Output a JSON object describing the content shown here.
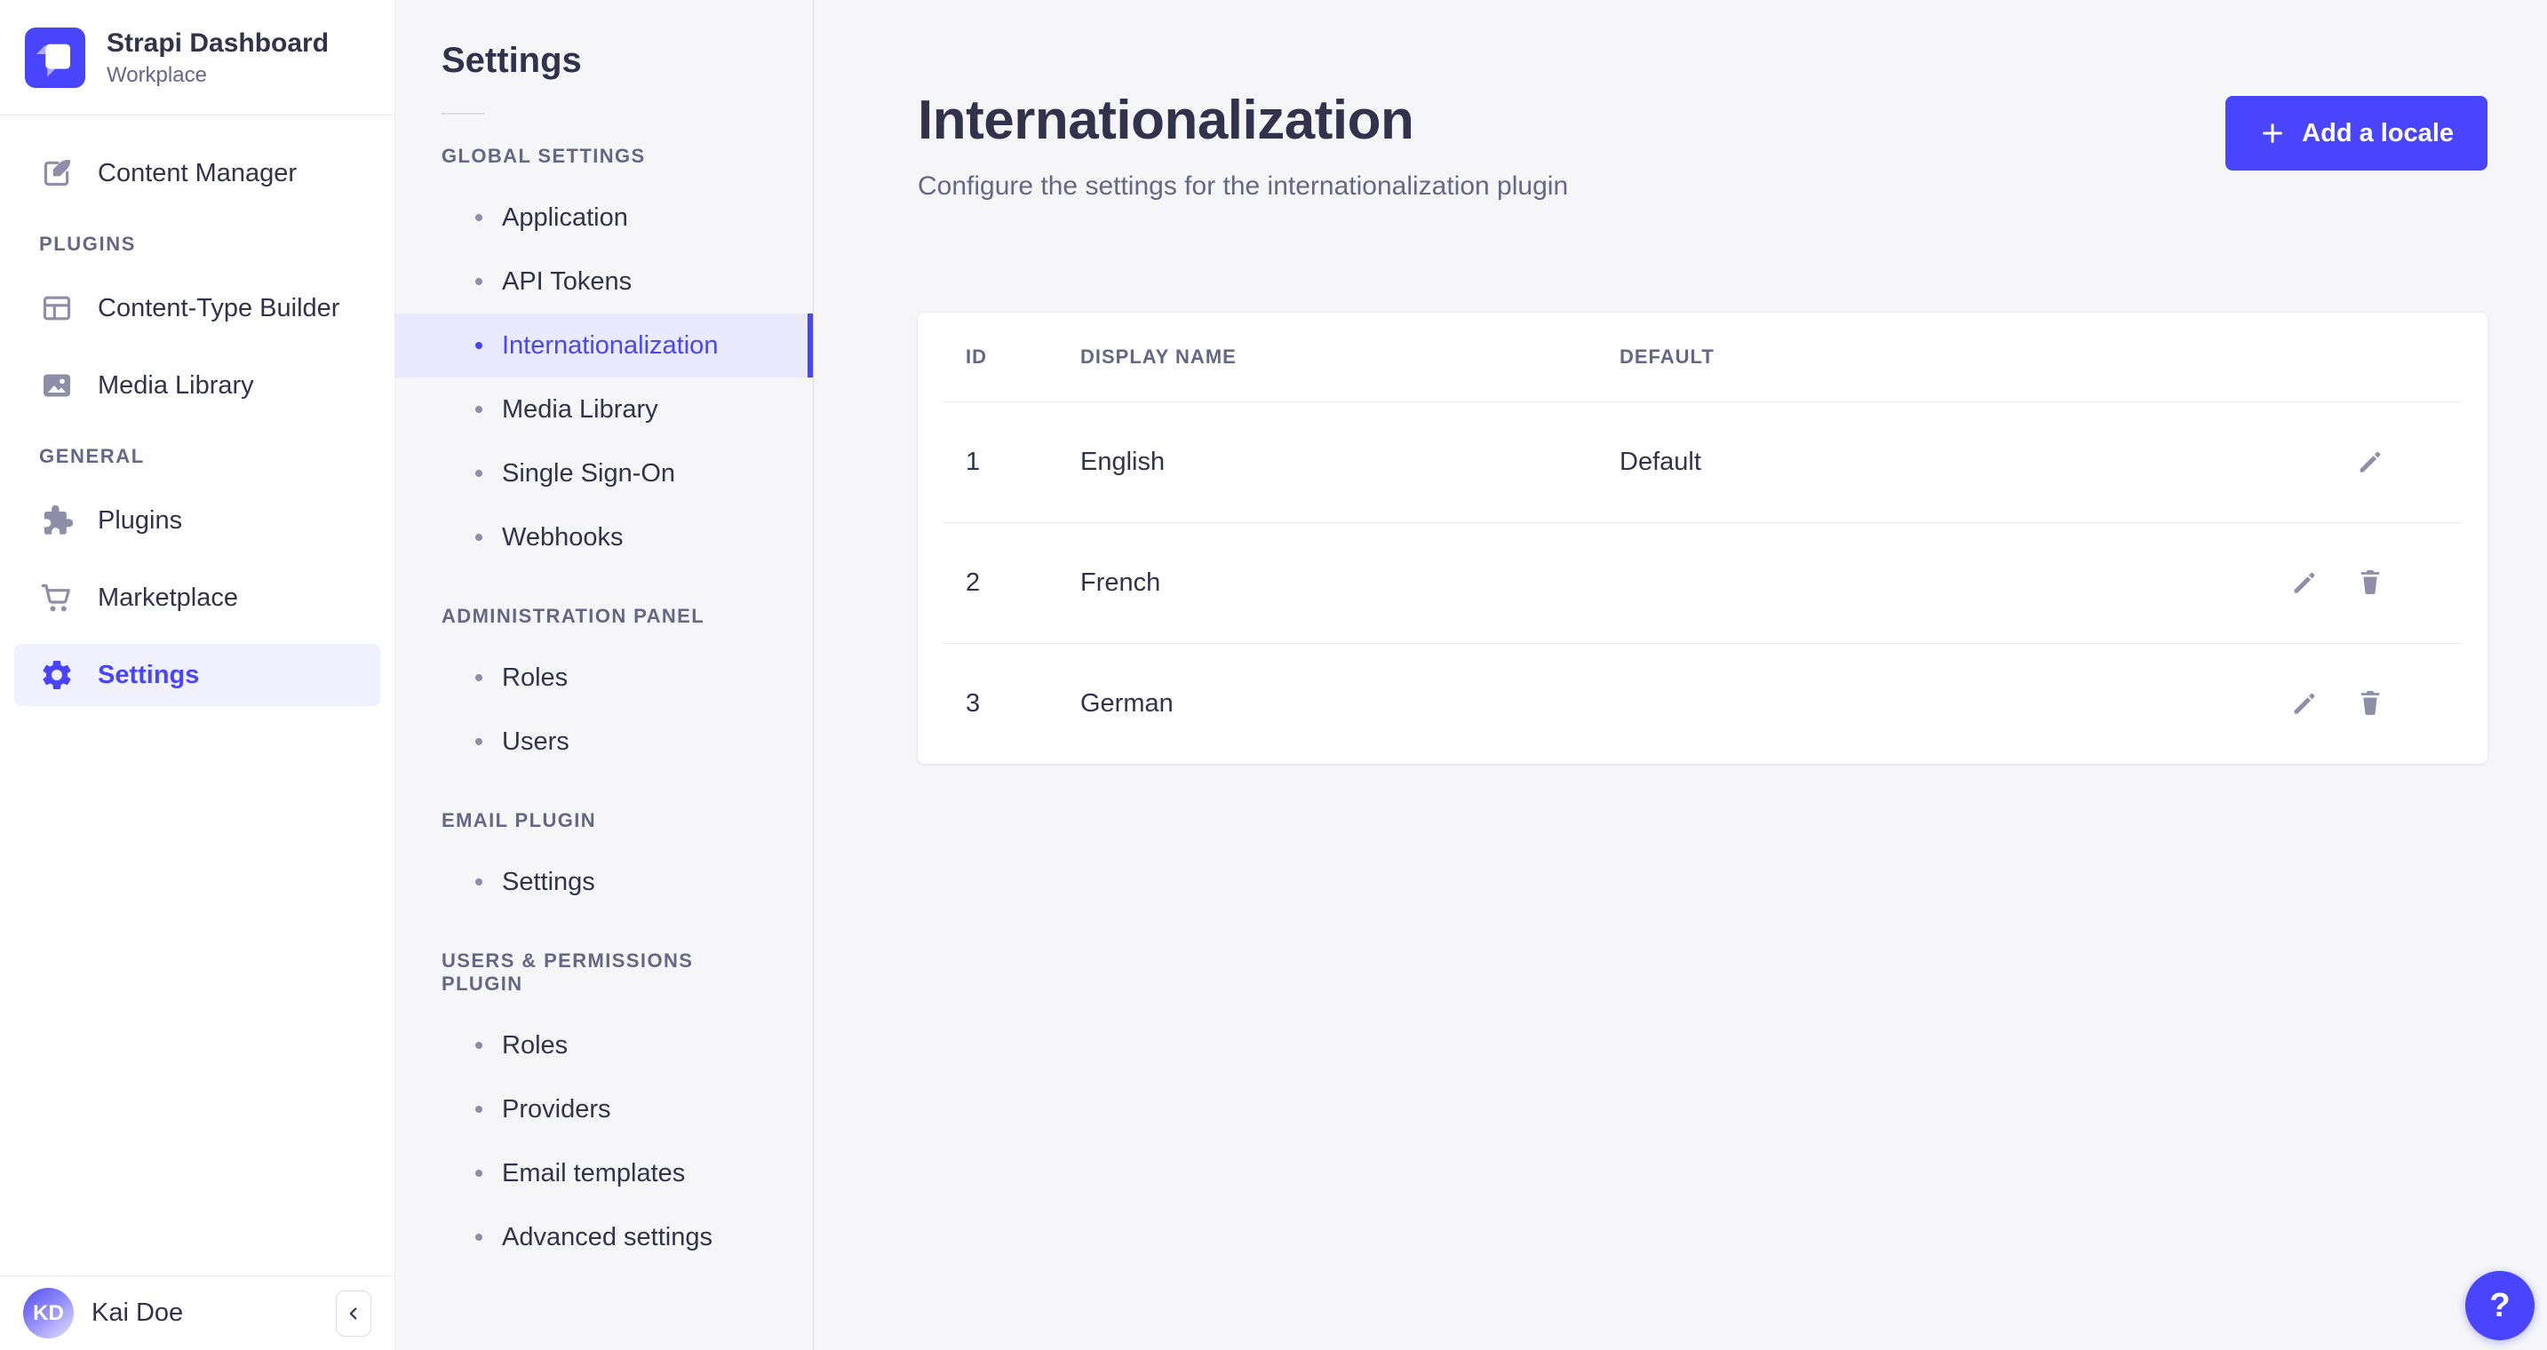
{
  "colors": {
    "primary": "#4945ff",
    "primary_light_bg": "#f0f0ff",
    "subnav_active_bg": "#e9e9ff",
    "text_dark": "#32324d",
    "text_muted": "#666687",
    "icon_gray": "#8e8ea9",
    "border": "#eaeaef",
    "page_bg": "#f6f6f9"
  },
  "brand": {
    "title": "Strapi Dashboard",
    "subtitle": "Workplace",
    "logo_icon": "strapi-logo"
  },
  "sidebar": {
    "groups": [
      {
        "label": null,
        "items": [
          {
            "label": "Content Manager",
            "icon": "content-manager-icon",
            "active": false
          }
        ]
      },
      {
        "label": "PLUGINS",
        "items": [
          {
            "label": "Content-Type Builder",
            "icon": "content-type-builder-icon",
            "active": false
          },
          {
            "label": "Media Library",
            "icon": "media-library-icon",
            "active": false
          }
        ]
      },
      {
        "label": "GENERAL",
        "items": [
          {
            "label": "Plugins",
            "icon": "plugins-icon",
            "active": false
          },
          {
            "label": "Marketplace",
            "icon": "marketplace-icon",
            "active": false
          },
          {
            "label": "Settings",
            "icon": "settings-icon",
            "active": true
          }
        ]
      }
    ],
    "user": {
      "initials": "KD",
      "name": "Kai Doe"
    },
    "collapse_icon": "chevron-left-icon"
  },
  "subnav": {
    "title": "Settings",
    "sections": [
      {
        "label": "GLOBAL SETTINGS",
        "items": [
          {
            "label": "Application",
            "active": false
          },
          {
            "label": "API Tokens",
            "active": false
          },
          {
            "label": "Internationalization",
            "active": true
          },
          {
            "label": "Media Library",
            "active": false
          },
          {
            "label": "Single Sign-On",
            "active": false
          },
          {
            "label": "Webhooks",
            "active": false
          }
        ]
      },
      {
        "label": "ADMINISTRATION PANEL",
        "items": [
          {
            "label": "Roles",
            "active": false
          },
          {
            "label": "Users",
            "active": false
          }
        ]
      },
      {
        "label": "EMAIL PLUGIN",
        "items": [
          {
            "label": "Settings",
            "active": false
          }
        ]
      },
      {
        "label": "USERS & PERMISSIONS PLUGIN",
        "items": [
          {
            "label": "Roles",
            "active": false
          },
          {
            "label": "Providers",
            "active": false
          },
          {
            "label": "Email templates",
            "active": false
          },
          {
            "label": "Advanced settings",
            "active": false
          }
        ]
      }
    ]
  },
  "main": {
    "title": "Internationalization",
    "subtitle": "Configure the settings for the internationalization plugin",
    "add_button_label": "Add a locale",
    "table": {
      "headers": [
        "ID",
        "DISPLAY NAME",
        "DEFAULT"
      ],
      "rows": [
        {
          "id": "1",
          "display_name": "English",
          "default": "Default",
          "actions": [
            "edit"
          ]
        },
        {
          "id": "2",
          "display_name": "French",
          "default": "",
          "actions": [
            "edit",
            "delete"
          ]
        },
        {
          "id": "3",
          "display_name": "German",
          "default": "",
          "actions": [
            "edit",
            "delete"
          ]
        }
      ]
    }
  },
  "help_button": {
    "label": "?"
  }
}
